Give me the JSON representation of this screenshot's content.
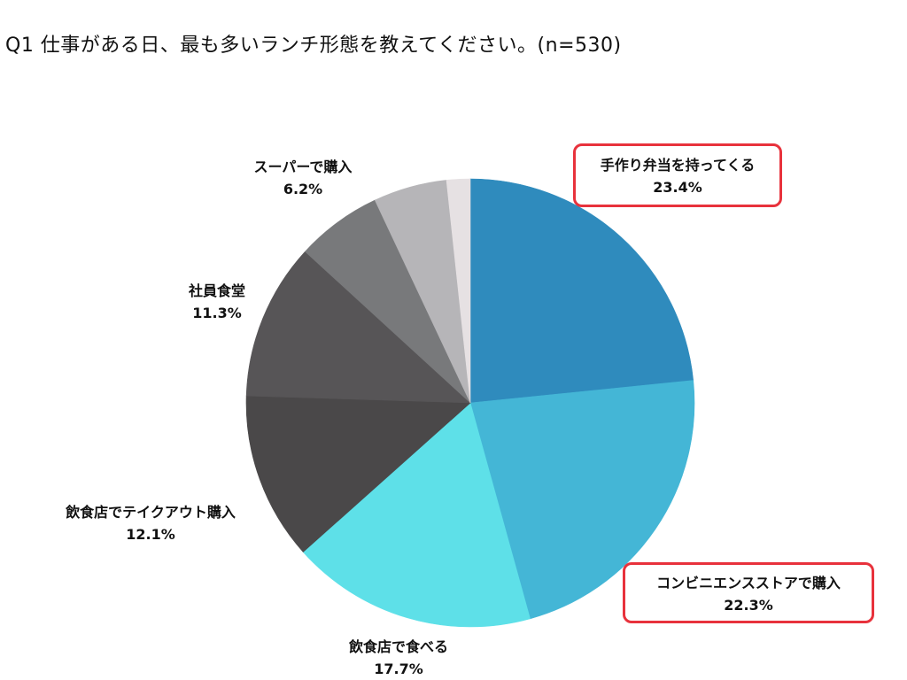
{
  "title": "Q1 仕事がある日、最も多いランチ形態を教えてください。(n=530)",
  "chart_data": {
    "type": "pie",
    "title": "Q1 仕事がある日、最も多いランチ形態を教えてください。(n=530)",
    "n": 530,
    "start_angle": "12 o'clock, clockwise",
    "categories": [
      "手作り弁当を持ってくる",
      "コンビニエンスストアで購入",
      "飲食店で食べる",
      "飲食店でテイクアウト購入",
      "社員食堂",
      "スーパーで購入",
      "(その他・無ラベル)",
      "(その他・無ラベル)"
    ],
    "values": [
      23.4,
      22.3,
      17.7,
      12.1,
      11.3,
      6.2,
      5.3,
      1.7
    ],
    "colors": [
      "#2f8bbd",
      "#44b6d6",
      "#5ee0e8",
      "#4a4849",
      "#575557",
      "#78797b",
      "#b6b5b8",
      "#e6e1e3"
    ],
    "labels": [
      {
        "name": "手作り弁当を持ってくる",
        "pct": "23.4%",
        "highlighted": true
      },
      {
        "name": "コンビニエンスストアで購入",
        "pct": "22.3%",
        "highlighted": true
      },
      {
        "name": "飲食店で食べる",
        "pct": "17.7%",
        "highlighted": false
      },
      {
        "name": "飲食店でテイクアウト購入",
        "pct": "12.1%",
        "highlighted": false
      },
      {
        "name": "社員食堂",
        "pct": "11.3%",
        "highlighted": false
      },
      {
        "name": "スーパーで購入",
        "pct": "6.2%",
        "highlighted": false
      }
    ],
    "highlight_color": "#e8323c",
    "legend": "none (direct labels)"
  }
}
